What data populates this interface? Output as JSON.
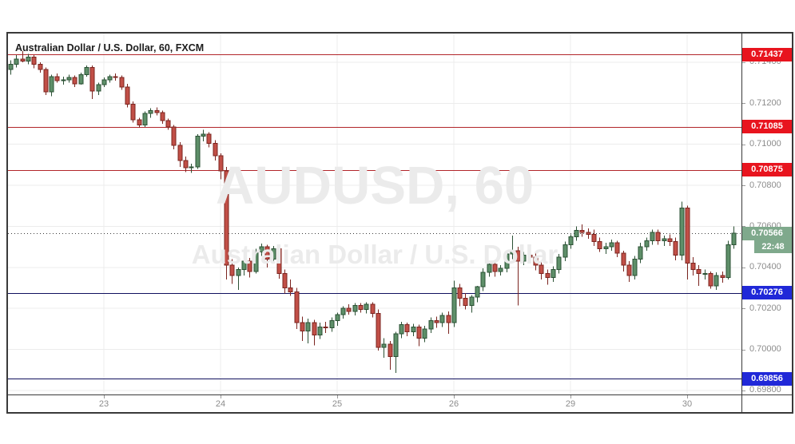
{
  "header": {
    "title": "Australian Dollar / U.S. Dollar, 60, FXCM"
  },
  "watermark": {
    "line1": "AUDUSD, 60",
    "line2": "Australian Dollar / U.S. Dollar"
  },
  "colors": {
    "red_line": "#b2262a",
    "red_badge": "#e8141e",
    "navy_line": "#10105e",
    "navy_badge": "#2028d8",
    "dotted_line": "#3c3c3c",
    "green_badge": "#7fa98c",
    "up_fill": "#5e8f69",
    "up_border": "#2b5134",
    "down_fill": "#c14f47",
    "down_border": "#7b241f",
    "grid": "#ececec",
    "axis_text": "#8c8c8c",
    "watermark": "#ebebeb"
  },
  "chart_data": {
    "type": "candlestick",
    "title": "Australian Dollar / U.S. Dollar, 60, FXCM",
    "symbol": "AUDUSD",
    "interval": "60",
    "provider": "FXCM",
    "ylim": [
      0.6978,
      0.7154
    ],
    "y_ticks": [
      0.698,
      0.7,
      0.702,
      0.704,
      0.706,
      0.708,
      0.71,
      0.712,
      0.714
    ],
    "x_ticks": [
      {
        "index": 16,
        "label": "23"
      },
      {
        "index": 36,
        "label": "24"
      },
      {
        "index": 56,
        "label": "25"
      },
      {
        "index": 76,
        "label": "26"
      },
      {
        "index": 96,
        "label": "29"
      },
      {
        "index": 116,
        "label": "30"
      }
    ],
    "price_lines": [
      {
        "price": 0.71437,
        "label": "0.71437",
        "color": "red",
        "style": "solid"
      },
      {
        "price": 0.71085,
        "label": "0.71085",
        "color": "red",
        "style": "solid"
      },
      {
        "price": 0.70875,
        "label": "0.70875",
        "color": "red",
        "style": "solid"
      },
      {
        "price": 0.70566,
        "label": "0.70566",
        "color": "green",
        "style": "dotted",
        "role": "last-price",
        "time_label": "22:48"
      },
      {
        "price": 0.70276,
        "label": "0.70276",
        "color": "navy",
        "style": "solid"
      },
      {
        "price": 0.69856,
        "label": "0.69856",
        "color": "navy",
        "style": "solid"
      }
    ],
    "last_price": 0.70566,
    "last_time": "22:48",
    "candles": [
      [
        0.71365,
        0.7141,
        0.7134,
        0.7139
      ],
      [
        0.7139,
        0.71435,
        0.71375,
        0.71415
      ],
      [
        0.71415,
        0.71455,
        0.714,
        0.71405
      ],
      [
        0.71405,
        0.7144,
        0.7139,
        0.71425
      ],
      [
        0.71425,
        0.71435,
        0.7137,
        0.7139
      ],
      [
        0.7139,
        0.714,
        0.7135,
        0.71365
      ],
      [
        0.71365,
        0.71375,
        0.7124,
        0.71255
      ],
      [
        0.71255,
        0.7134,
        0.71235,
        0.7133
      ],
      [
        0.7133,
        0.71345,
        0.713,
        0.7131
      ],
      [
        0.7131,
        0.7133,
        0.7129,
        0.71315
      ],
      [
        0.71315,
        0.7134,
        0.713,
        0.71325
      ],
      [
        0.71325,
        0.71335,
        0.7128,
        0.71295
      ],
      [
        0.71295,
        0.7135,
        0.7129,
        0.7134
      ],
      [
        0.7134,
        0.71385,
        0.7133,
        0.71375
      ],
      [
        0.71375,
        0.71385,
        0.7122,
        0.7126
      ],
      [
        0.7126,
        0.713,
        0.7124,
        0.7129
      ],
      [
        0.7129,
        0.71325,
        0.7128,
        0.71315
      ],
      [
        0.71315,
        0.7134,
        0.713,
        0.7133
      ],
      [
        0.7133,
        0.71345,
        0.7131,
        0.71325
      ],
      [
        0.71325,
        0.71335,
        0.71265,
        0.7128
      ],
      [
        0.7128,
        0.71295,
        0.7118,
        0.71195
      ],
      [
        0.71195,
        0.7121,
        0.71105,
        0.7112
      ],
      [
        0.7112,
        0.7113,
        0.7108,
        0.71095
      ],
      [
        0.71095,
        0.7116,
        0.71085,
        0.7115
      ],
      [
        0.7115,
        0.71175,
        0.7113,
        0.71165
      ],
      [
        0.71165,
        0.7118,
        0.7114,
        0.71155
      ],
      [
        0.71155,
        0.71165,
        0.711,
        0.71115
      ],
      [
        0.71115,
        0.71125,
        0.7107,
        0.71085
      ],
      [
        0.71085,
        0.71095,
        0.70975,
        0.70995
      ],
      [
        0.70995,
        0.7101,
        0.7089,
        0.7092
      ],
      [
        0.7092,
        0.7094,
        0.70865,
        0.70885
      ],
      [
        0.70885,
        0.70905,
        0.7086,
        0.7089
      ],
      [
        0.7089,
        0.7105,
        0.7088,
        0.7104
      ],
      [
        0.7104,
        0.7107,
        0.71015,
        0.7105
      ],
      [
        0.7105,
        0.7106,
        0.70985,
        0.71005
      ],
      [
        0.71005,
        0.7102,
        0.7092,
        0.70945
      ],
      [
        0.70945,
        0.70955,
        0.7083,
        0.7087
      ],
      [
        0.7087,
        0.7089,
        0.7034,
        0.7041
      ],
      [
        0.7041,
        0.7044,
        0.7032,
        0.7036
      ],
      [
        0.7036,
        0.704,
        0.7029,
        0.7039
      ],
      [
        0.7039,
        0.7044,
        0.7036,
        0.7043
      ],
      [
        0.7043,
        0.70445,
        0.7035,
        0.7038
      ],
      [
        0.7038,
        0.7049,
        0.7037,
        0.70475
      ],
      [
        0.70475,
        0.70515,
        0.70455,
        0.705
      ],
      [
        0.705,
        0.7051,
        0.704,
        0.7044
      ],
      [
        0.7044,
        0.70505,
        0.7042,
        0.7049
      ],
      [
        0.7049,
        0.70505,
        0.70345,
        0.7037
      ],
      [
        0.7037,
        0.7039,
        0.70272,
        0.703
      ],
      [
        0.703,
        0.7034,
        0.7026,
        0.7028
      ],
      [
        0.7028,
        0.703,
        0.701,
        0.7013
      ],
      [
        0.7013,
        0.7016,
        0.7004,
        0.7009
      ],
      [
        0.7009,
        0.7015,
        0.7003,
        0.7013
      ],
      [
        0.7013,
        0.70145,
        0.7002,
        0.7007
      ],
      [
        0.7007,
        0.7013,
        0.7005,
        0.7011
      ],
      [
        0.7011,
        0.70135,
        0.7008,
        0.70105
      ],
      [
        0.70105,
        0.70155,
        0.70085,
        0.7014
      ],
      [
        0.7014,
        0.7018,
        0.70115,
        0.7017
      ],
      [
        0.7017,
        0.7021,
        0.7015,
        0.702
      ],
      [
        0.702,
        0.7022,
        0.7017,
        0.70185
      ],
      [
        0.70185,
        0.70225,
        0.70165,
        0.70215
      ],
      [
        0.70215,
        0.70225,
        0.7018,
        0.70195
      ],
      [
        0.70195,
        0.7023,
        0.70175,
        0.7022
      ],
      [
        0.7022,
        0.7023,
        0.70155,
        0.70175
      ],
      [
        0.70175,
        0.70195,
        0.69995,
        0.7001
      ],
      [
        0.7001,
        0.70055,
        0.6996,
        0.70025
      ],
      [
        0.70025,
        0.7004,
        0.699,
        0.69965
      ],
      [
        0.69965,
        0.70085,
        0.69885,
        0.70075
      ],
      [
        0.70075,
        0.70135,
        0.70055,
        0.7012
      ],
      [
        0.7012,
        0.7013,
        0.70065,
        0.70085
      ],
      [
        0.70085,
        0.70125,
        0.70065,
        0.7011
      ],
      [
        0.7011,
        0.7012,
        0.70015,
        0.70055
      ],
      [
        0.70055,
        0.70115,
        0.70035,
        0.701
      ],
      [
        0.701,
        0.70155,
        0.7008,
        0.7014
      ],
      [
        0.7014,
        0.7016,
        0.70105,
        0.7013
      ],
      [
        0.7013,
        0.7018,
        0.7011,
        0.70165
      ],
      [
        0.70165,
        0.70185,
        0.70075,
        0.7013
      ],
      [
        0.7013,
        0.70335,
        0.7011,
        0.703
      ],
      [
        0.703,
        0.7032,
        0.7021,
        0.7025
      ],
      [
        0.7025,
        0.70275,
        0.70195,
        0.70215
      ],
      [
        0.70215,
        0.70265,
        0.7018,
        0.70255
      ],
      [
        0.70255,
        0.7031,
        0.7023,
        0.70305
      ],
      [
        0.70305,
        0.70395,
        0.70285,
        0.70375
      ],
      [
        0.70375,
        0.7043,
        0.70355,
        0.70415
      ],
      [
        0.70415,
        0.7043,
        0.70355,
        0.7038
      ],
      [
        0.7038,
        0.7041,
        0.7036,
        0.70395
      ],
      [
        0.70395,
        0.70475,
        0.70375,
        0.70465
      ],
      [
        0.70465,
        0.70555,
        0.7044,
        0.7048
      ],
      [
        0.7048,
        0.705,
        0.70215,
        0.7043
      ],
      [
        0.7043,
        0.70475,
        0.7041,
        0.7046
      ],
      [
        0.7046,
        0.7048,
        0.7043,
        0.7045
      ],
      [
        0.7045,
        0.7047,
        0.70385,
        0.7041
      ],
      [
        0.7041,
        0.7043,
        0.7034,
        0.7037
      ],
      [
        0.7037,
        0.7039,
        0.70315,
        0.7035
      ],
      [
        0.7035,
        0.70405,
        0.7033,
        0.7039
      ],
      [
        0.7039,
        0.70465,
        0.7037,
        0.7045
      ],
      [
        0.7045,
        0.70525,
        0.7043,
        0.7051
      ],
      [
        0.7051,
        0.7056,
        0.7049,
        0.7055
      ],
      [
        0.7055,
        0.706,
        0.7053,
        0.7058
      ],
      [
        0.7058,
        0.7061,
        0.7055,
        0.7057
      ],
      [
        0.7057,
        0.7059,
        0.7054,
        0.7056
      ],
      [
        0.7056,
        0.70585,
        0.70505,
        0.70525
      ],
      [
        0.70525,
        0.70545,
        0.70475,
        0.7049
      ],
      [
        0.7049,
        0.7052,
        0.70465,
        0.705
      ],
      [
        0.705,
        0.70535,
        0.7048,
        0.7052
      ],
      [
        0.7052,
        0.7053,
        0.7045,
        0.7047
      ],
      [
        0.7047,
        0.7048,
        0.7038,
        0.7041
      ],
      [
        0.7041,
        0.7043,
        0.7033,
        0.7036
      ],
      [
        0.7036,
        0.70455,
        0.7034,
        0.7044
      ],
      [
        0.7044,
        0.7052,
        0.7042,
        0.705
      ],
      [
        0.705,
        0.70545,
        0.7048,
        0.7053
      ],
      [
        0.7053,
        0.70585,
        0.7051,
        0.7057
      ],
      [
        0.7057,
        0.70585,
        0.7051,
        0.7053
      ],
      [
        0.7053,
        0.70555,
        0.70505,
        0.7054
      ],
      [
        0.7054,
        0.7056,
        0.70505,
        0.70525
      ],
      [
        0.70525,
        0.70545,
        0.70435,
        0.7046
      ],
      [
        0.7046,
        0.7072,
        0.70435,
        0.7069
      ],
      [
        0.7069,
        0.707,
        0.7034,
        0.7042
      ],
      [
        0.7042,
        0.7045,
        0.7036,
        0.7039
      ],
      [
        0.7039,
        0.7041,
        0.7031,
        0.7037
      ],
      [
        0.7037,
        0.7039,
        0.7034,
        0.7037
      ],
      [
        0.7037,
        0.7038,
        0.70295,
        0.7031
      ],
      [
        0.7031,
        0.70375,
        0.7029,
        0.7036
      ],
      [
        0.7036,
        0.7038,
        0.70325,
        0.7035
      ],
      [
        0.7035,
        0.7053,
        0.7034,
        0.7051
      ],
      [
        0.7051,
        0.706,
        0.7049,
        0.70566
      ]
    ]
  }
}
